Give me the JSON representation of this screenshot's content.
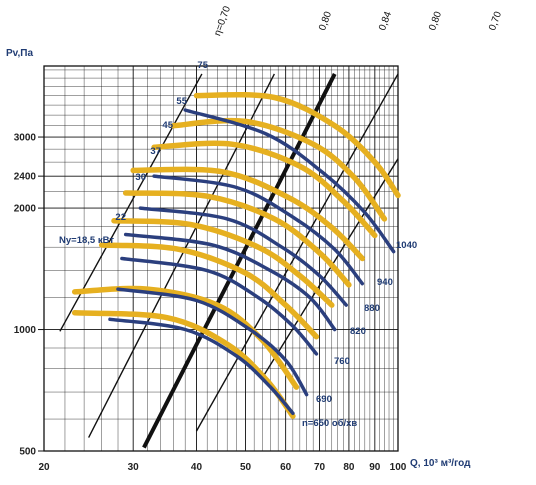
{
  "chart_data": {
    "type": "line",
    "title": "",
    "xlabel": "Q, 10³ м³/год",
    "ylabel": "Pv,Па",
    "x_scale": "log",
    "y_scale": "log",
    "xlim": [
      20,
      100
    ],
    "ylim": [
      500,
      4500
    ],
    "x_ticks": [
      "20",
      "30",
      "40",
      "50",
      "60",
      "70",
      "80",
      "90",
      "100"
    ],
    "y_ticks": [
      "500",
      "1000",
      "2000",
      "2400",
      "3000"
    ],
    "colors": {
      "speed": "#2b3f7e",
      "power": "#e6b020",
      "efficiency": "#111111",
      "grid": "#111111"
    },
    "speed_series": [
      {
        "name": "n=650 об/хв",
        "points": [
          [
            27,
            1060
          ],
          [
            38,
            1000
          ],
          [
            48,
            860
          ],
          [
            56,
            720
          ],
          [
            62,
            620
          ]
        ]
      },
      {
        "name": "690",
        "points": [
          [
            28,
            1260
          ],
          [
            40,
            1180
          ],
          [
            51,
            1000
          ],
          [
            60,
            840
          ],
          [
            66,
            690
          ]
        ]
      },
      {
        "name": "760",
        "points": [
          [
            28.5,
            1500
          ],
          [
            42,
            1400
          ],
          [
            53,
            1200
          ],
          [
            62,
            1020
          ],
          [
            69,
            870
          ]
        ]
      },
      {
        "name": "820",
        "points": [
          [
            29,
            1720
          ],
          [
            43,
            1620
          ],
          [
            56,
            1400
          ],
          [
            67,
            1200
          ],
          [
            75,
            1000
          ]
        ]
      },
      {
        "name": "880",
        "points": [
          [
            31,
            2000
          ],
          [
            46,
            1880
          ],
          [
            59,
            1600
          ],
          [
            70,
            1360
          ],
          [
            79,
            1150
          ]
        ]
      },
      {
        "name": "940",
        "points": [
          [
            33,
            2400
          ],
          [
            48,
            2250
          ],
          [
            62,
            1900
          ],
          [
            75,
            1580
          ],
          [
            85,
            1300
          ]
        ]
      },
      {
        "name": "1040",
        "points": [
          [
            38,
            3500
          ],
          [
            55,
            3050
          ],
          [
            71,
            2450
          ],
          [
            86,
            1950
          ],
          [
            98,
            1560
          ]
        ]
      }
    ],
    "power_series": [
      {
        "name": "",
        "points": [
          [
            23,
            1100
          ],
          [
            35,
            1070
          ],
          [
            46,
            920
          ],
          [
            55,
            750
          ],
          [
            62,
            610
          ]
        ]
      },
      {
        "name": "",
        "points": [
          [
            23,
            1240
          ],
          [
            32,
            1260
          ],
          [
            44,
            1150
          ],
          [
            54,
            940
          ],
          [
            63,
            720
          ]
        ]
      },
      {
        "name": "Ny=18,5 кВт",
        "points": [
          [
            26,
            1620
          ],
          [
            37,
            1580
          ],
          [
            50,
            1380
          ],
          [
            60,
            1150
          ],
          [
            69,
            960
          ]
        ]
      },
      {
        "name": "22",
        "points": [
          [
            27.5,
            1860
          ],
          [
            39,
            1820
          ],
          [
            53,
            1600
          ],
          [
            64,
            1360
          ],
          [
            74,
            1150
          ]
        ]
      },
      {
        "name": "30",
        "points": [
          [
            29,
            2180
          ],
          [
            42,
            2140
          ],
          [
            57,
            1880
          ],
          [
            70,
            1550
          ],
          [
            80,
            1290
          ]
        ]
      },
      {
        "name": "37",
        "points": [
          [
            30,
            2480
          ],
          [
            45,
            2460
          ],
          [
            61,
            2120
          ],
          [
            74,
            1790
          ],
          [
            85,
            1500
          ]
        ]
      },
      {
        "name": "45",
        "points": [
          [
            33,
            2830
          ],
          [
            47,
            2880
          ],
          [
            64,
            2540
          ],
          [
            78,
            2080
          ],
          [
            90,
            1710
          ]
        ]
      },
      {
        "name": "55",
        "points": [
          [
            36,
            3200
          ],
          [
            50,
            3280
          ],
          [
            68,
            2880
          ],
          [
            82,
            2380
          ],
          [
            94,
            1880
          ]
        ]
      },
      {
        "name": "75",
        "points": [
          [
            40,
            3800
          ],
          [
            57,
            3760
          ],
          [
            75,
            3200
          ],
          [
            90,
            2600
          ],
          [
            100,
            2150
          ]
        ]
      }
    ],
    "efficiency_lines": [
      {
        "name": "η=0,70",
        "thick": false,
        "points": [
          [
            21.5,
            990
          ],
          [
            41,
            4300
          ]
        ]
      },
      {
        "name": "0,80",
        "thick": false,
        "points": [
          [
            24.5,
            540
          ],
          [
            57,
            4300
          ]
        ]
      },
      {
        "name": "0,84",
        "thick": true,
        "points": [
          [
            31.5,
            510
          ],
          [
            75,
            4300
          ]
        ]
      },
      {
        "name": "0,80",
        "thick": false,
        "points": [
          [
            40,
            560
          ],
          [
            100,
            4300
          ]
        ]
      },
      {
        "name": "0,70",
        "thick": false,
        "points": [
          [
            54,
            760
          ],
          [
            100,
            2650
          ]
        ]
      }
    ],
    "speed_labels": [
      "n=650 об/хв",
      "690",
      "760",
      "820",
      "880",
      "940",
      "1040"
    ],
    "power_labels": [
      "Ny=18,5 кВт",
      "22",
      "30",
      "37",
      "45",
      "55",
      "75"
    ],
    "efficiency_labels": [
      "η=0,70",
      "0,80",
      "0,84",
      "0,80",
      "0,70"
    ],
    "grid": true
  }
}
